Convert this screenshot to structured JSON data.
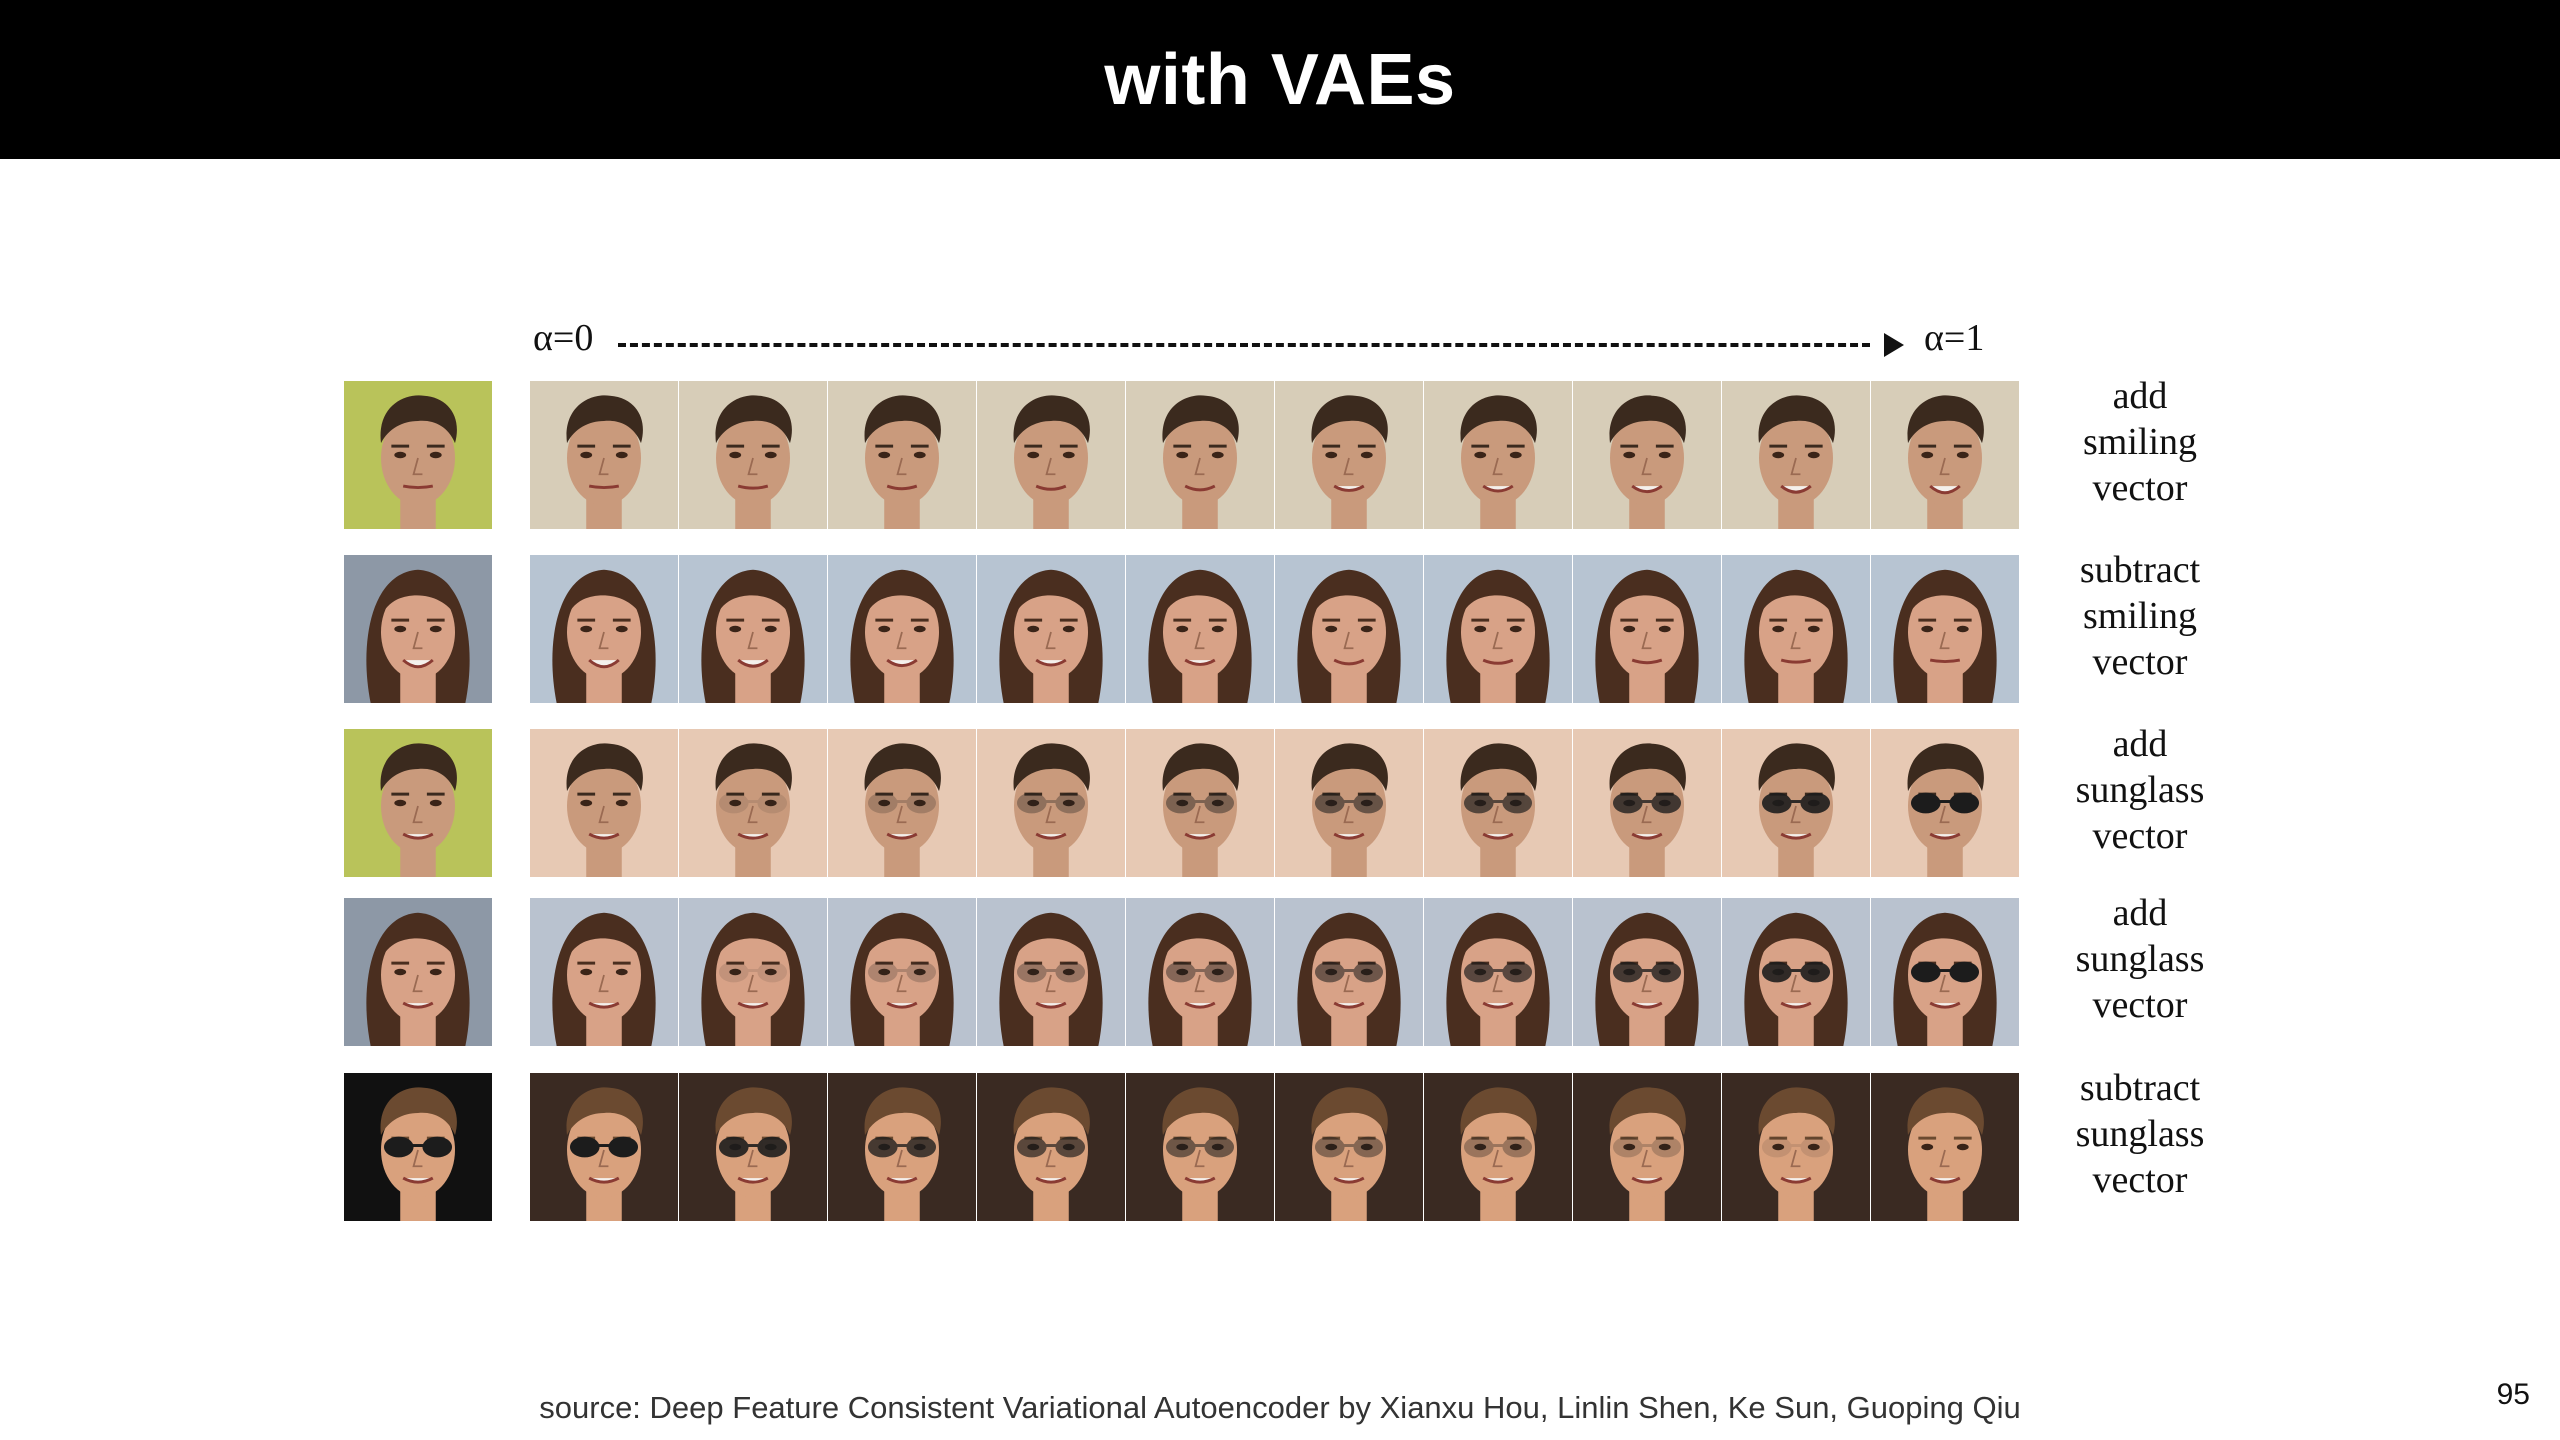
{
  "slide": {
    "title": "with VAEs",
    "source": "source: Deep Feature Consistent Variational Autoencoder by Xianxu Hou, Linlin Shen, Ke Sun, Guoping Qiu",
    "page_number": "95"
  },
  "figure": {
    "alpha_start": "α=0",
    "alpha_end": "α=1",
    "rows": [
      {
        "caption": [
          "add",
          "smiling",
          "vector"
        ],
        "subject": "man",
        "skin": "#c99a7c",
        "hair": "#3b2a1e",
        "bg": "#d7cdb8",
        "src_bg": "#b9c35a",
        "attribute": "smile",
        "from": 0,
        "to": 1
      },
      {
        "caption": [
          "subtract",
          "smiling",
          "vector"
        ],
        "subject": "woman",
        "skin": "#d8a287",
        "hair": "#4a2e1f",
        "bg": "#b7c4d2",
        "src_bg": "#8d98a6",
        "attribute": "smile",
        "from": 1,
        "to": 0
      },
      {
        "caption": [
          "add",
          "sunglass",
          "vector"
        ],
        "subject": "man",
        "skin": "#c99a7c",
        "hair": "#3b2a1e",
        "bg": "#e7c9b4",
        "src_bg": "#b9c35a",
        "attribute": "glasses",
        "from": 0,
        "to": 1
      },
      {
        "caption": [
          "add",
          "sunglass",
          "vector"
        ],
        "subject": "woman",
        "skin": "#d8a287",
        "hair": "#4a2e1f",
        "bg": "#b9c2cf",
        "src_bg": "#8d98a6",
        "attribute": "glasses",
        "from": 0,
        "to": 1
      },
      {
        "caption": [
          "subtract",
          "sunglass",
          "vector"
        ],
        "subject": "man-dark",
        "skin": "#d9a17d",
        "hair": "#6b4a30",
        "bg": "#3a2a22",
        "src_bg": "#111111",
        "attribute": "glasses",
        "from": 1,
        "to": 0
      }
    ]
  },
  "colors": {
    "title_bar": "#000000",
    "title_text": "#ffffff",
    "glasses": "#1c1c1c"
  }
}
